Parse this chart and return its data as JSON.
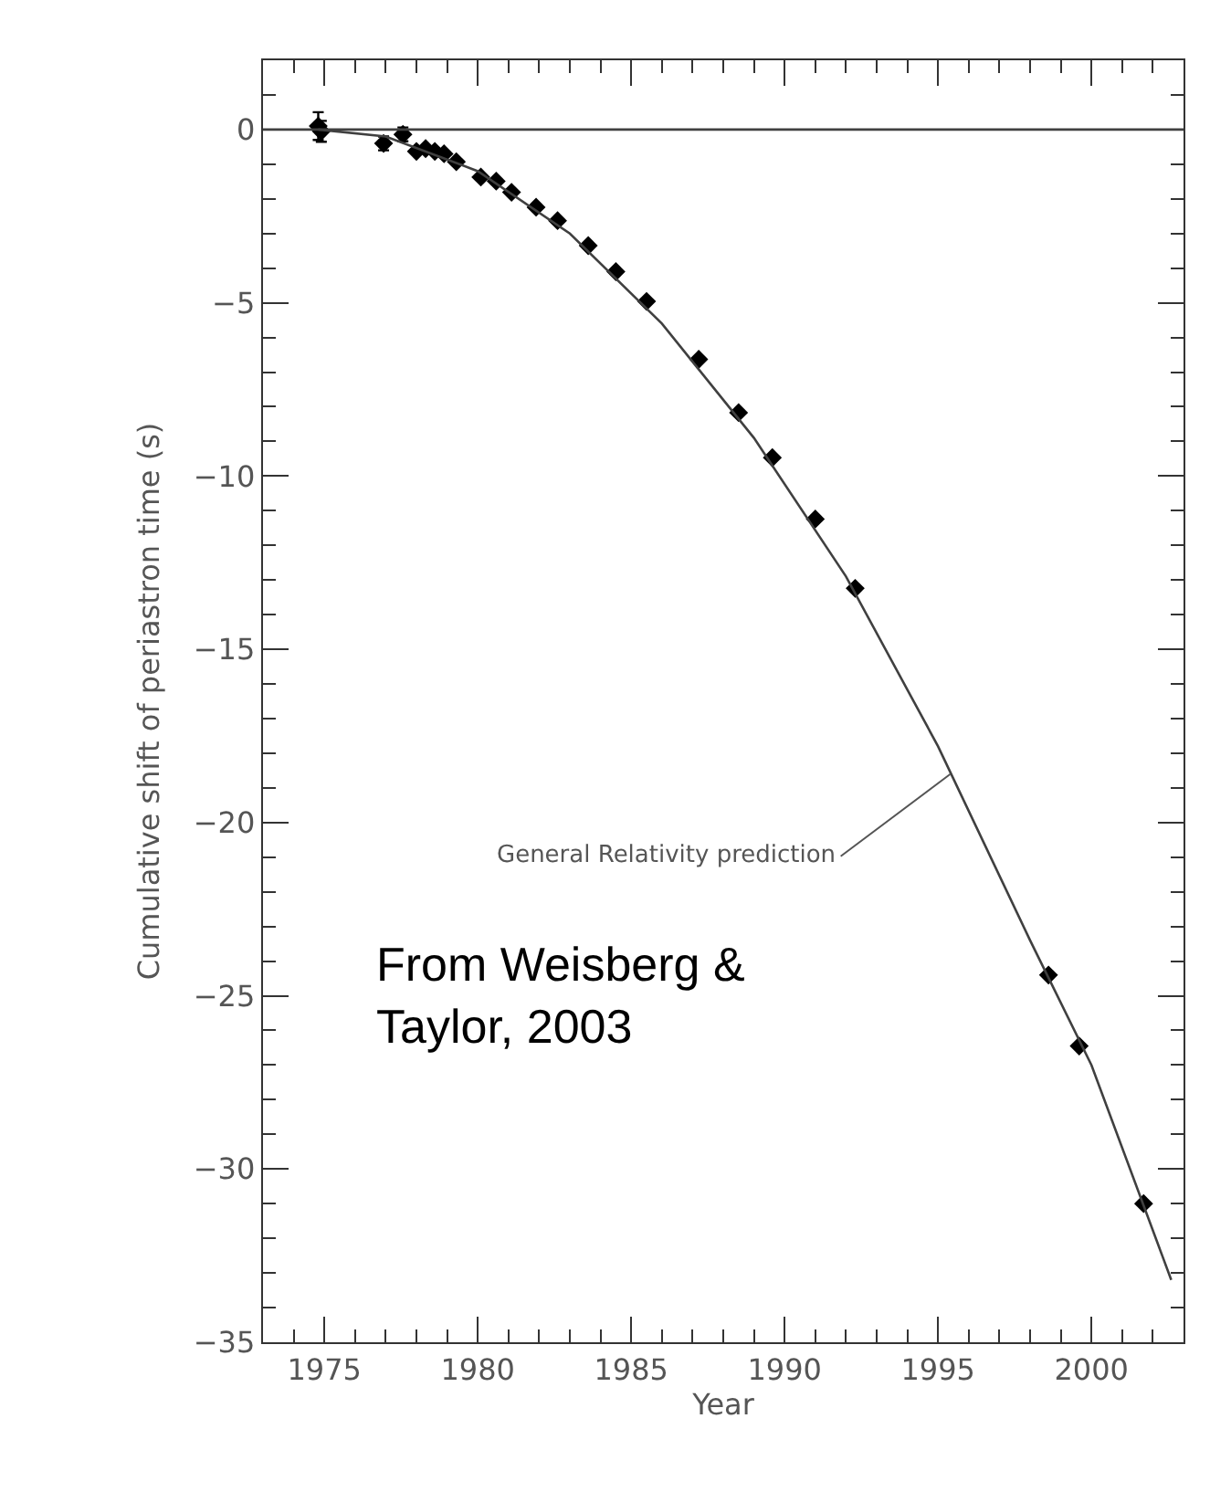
{
  "chart_data": {
    "type": "scatter",
    "xlabel": "Year",
    "ylabel": "Cumulative shift of periastron time (s)",
    "xlim": [
      1973,
      2003
    ],
    "xticks": [
      1975,
      1980,
      1985,
      1990,
      1995,
      2000
    ],
    "ylim": [
      -35,
      2
    ],
    "yticks": [
      0,
      -5,
      -10,
      -15,
      -20,
      -25,
      -30,
      -35
    ],
    "marker": "diamond",
    "series": [
      {
        "color": "#000000",
        "x": [
          1974.8,
          1974.9,
          1976.93,
          1977.56,
          1978.0,
          1978.3,
          1978.6,
          1978.9,
          1979.3,
          1980.1,
          1980.6,
          1981.1,
          1981.9,
          1982.6,
          1983.6,
          1984.5,
          1985.5,
          1987.2,
          1988.5,
          1989.6,
          1991.0,
          1992.3,
          1998.6,
          1999.6,
          2001.7
        ],
        "values": [
          0.1,
          -0.05,
          -0.4,
          -0.14,
          -0.63,
          -0.55,
          -0.63,
          -0.7,
          -0.93,
          -1.37,
          -1.49,
          -1.81,
          -2.24,
          -2.63,
          -3.35,
          -4.1,
          -4.96,
          -6.63,
          -8.17,
          -9.47,
          -11.24,
          -13.24,
          -24.4,
          -26.45,
          -31.0
        ],
        "errors": [
          0.4,
          0.3,
          0.2,
          0.2,
          null,
          null,
          null,
          null,
          null,
          null,
          null,
          null,
          null,
          null,
          null,
          null,
          null,
          null,
          null,
          null,
          null,
          null,
          null,
          null,
          null
        ]
      },
      {
        "type": "line",
        "color": "#404040",
        "line_style": "solid",
        "marker": "none",
        "x": [
          1974.8,
          1977,
          1980,
          1983,
          1986,
          1989,
          1992,
          1995,
          1998,
          2000,
          2002.6
        ],
        "values": [
          0,
          -0.2,
          -1.2,
          -3.0,
          -5.6,
          -8.9,
          -12.9,
          -17.8,
          -23.4,
          -27.0,
          -33.2
        ]
      }
    ],
    "ref_lines": [
      {
        "axis": "y",
        "value": 0,
        "color": "#404040",
        "line_style": "solid"
      }
    ],
    "annotations": [
      {
        "text": "General Relativity prediction",
        "x": 1995.4,
        "y": -18.6
      },
      "From Weisberg &\nTaylor, 2003"
    ]
  }
}
